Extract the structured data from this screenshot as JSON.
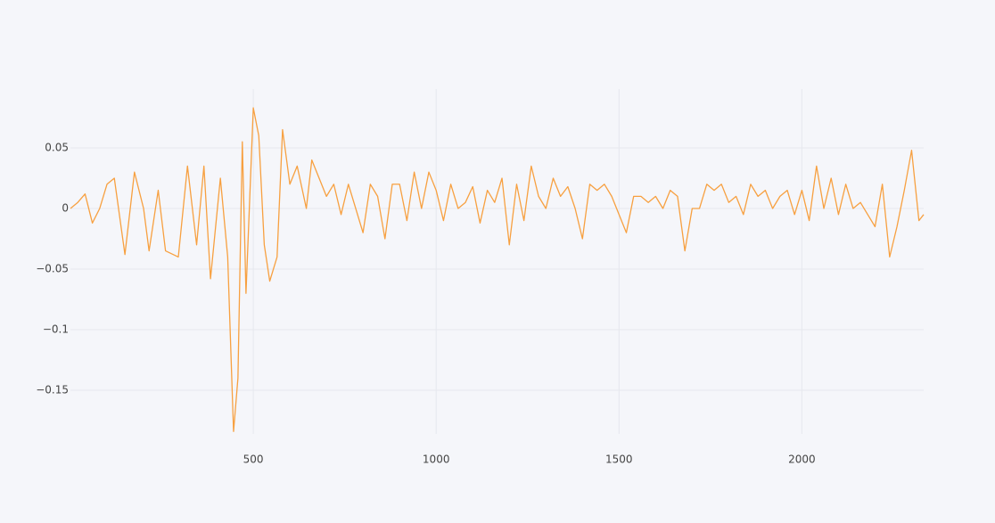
{
  "chart_data": {
    "type": "line",
    "x": [
      0,
      20,
      40,
      60,
      80,
      100,
      120,
      149,
      175,
      200,
      215,
      240,
      260,
      295,
      320,
      345,
      365,
      383,
      410,
      430,
      446,
      458,
      470,
      480,
      500,
      515,
      530,
      545,
      565,
      580,
      600,
      620,
      645,
      660,
      680,
      700,
      720,
      740,
      760,
      780,
      800,
      820,
      840,
      860,
      880,
      900,
      920,
      940,
      960,
      980,
      1000,
      1020,
      1040,
      1060,
      1080,
      1100,
      1120,
      1140,
      1160,
      1180,
      1200,
      1220,
      1240,
      1260,
      1280,
      1300,
      1320,
      1340,
      1360,
      1380,
      1400,
      1420,
      1440,
      1460,
      1480,
      1500,
      1520,
      1540,
      1560,
      1580,
      1600,
      1620,
      1640,
      1660,
      1680,
      1700,
      1720,
      1740,
      1760,
      1780,
      1800,
      1820,
      1840,
      1860,
      1880,
      1900,
      1920,
      1940,
      1960,
      1980,
      2000,
      2020,
      2040,
      2060,
      2080,
      2100,
      2120,
      2140,
      2160,
      2180,
      2200,
      2220,
      2240,
      2260,
      2280,
      2300,
      2320,
      2333
    ],
    "values": [
      0.0,
      0.005,
      0.012,
      -0.012,
      0.0,
      0.02,
      0.025,
      -0.038,
      0.03,
      0.0,
      -0.035,
      0.015,
      -0.035,
      -0.04,
      0.035,
      -0.03,
      0.035,
      -0.058,
      0.025,
      -0.04,
      -0.184,
      -0.14,
      0.055,
      -0.07,
      0.083,
      0.06,
      -0.03,
      -0.06,
      -0.04,
      0.065,
      0.02,
      0.035,
      0.0,
      0.04,
      0.025,
      0.01,
      0.02,
      -0.005,
      0.02,
      0.0,
      -0.02,
      0.02,
      0.01,
      -0.025,
      0.02,
      0.02,
      -0.01,
      0.03,
      0.0,
      0.03,
      0.015,
      -0.01,
      0.02,
      0.0,
      0.005,
      0.018,
      -0.012,
      0.015,
      0.005,
      0.025,
      -0.03,
      0.02,
      -0.01,
      0.035,
      0.01,
      0.0,
      0.025,
      0.01,
      0.018,
      0.0,
      -0.025,
      0.02,
      0.015,
      0.02,
      0.01,
      -0.005,
      -0.02,
      0.01,
      0.01,
      0.005,
      0.01,
      0.0,
      0.015,
      0.01,
      -0.035,
      0.0,
      0.0,
      0.02,
      0.015,
      0.02,
      0.005,
      0.01,
      -0.005,
      0.02,
      0.01,
      0.015,
      0.0,
      0.01,
      0.015,
      -0.005,
      0.015,
      -0.01,
      0.035,
      0.0,
      0.025,
      -0.005,
      0.02,
      0.0,
      0.005,
      -0.005,
      -0.015,
      0.02,
      -0.04,
      -0.015,
      0.015,
      0.048,
      -0.01,
      -0.005
    ],
    "color": "#f7a040",
    "xlim": [
      0,
      2333
    ],
    "xticks": [
      500,
      1000,
      1500,
      2000
    ],
    "ylim": [
      -0.186,
      0.0985
    ],
    "yticks": [
      {
        "value": -0.15,
        "label": "−0.15"
      },
      {
        "value": -0.1,
        "label": "−0.1"
      },
      {
        "value": -0.05,
        "label": "−0.05"
      },
      0,
      0.05
    ],
    "grid": true
  }
}
